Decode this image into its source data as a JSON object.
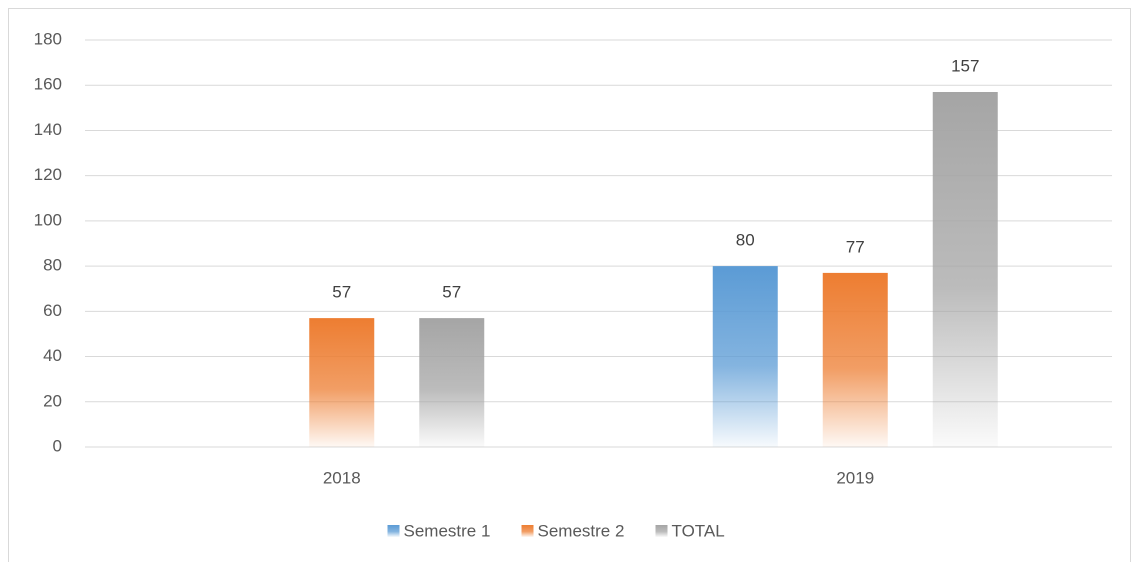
{
  "chart_data": {
    "type": "bar",
    "categories": [
      "2018",
      "2019"
    ],
    "series": [
      {
        "name": "Semestre 1",
        "color": "#5b9bd5",
        "values": [
          null,
          80
        ]
      },
      {
        "name": "Semestre 2",
        "color": "#ed7d31",
        "values": [
          57,
          77
        ]
      },
      {
        "name": "TOTAL",
        "color": "#a5a5a5",
        "values": [
          57,
          157
        ]
      }
    ],
    "ylim": [
      0,
      180
    ],
    "yticks": [
      0,
      20,
      40,
      60,
      80,
      100,
      120,
      140,
      160,
      180
    ],
    "grid": true,
    "legend": "bottom"
  }
}
